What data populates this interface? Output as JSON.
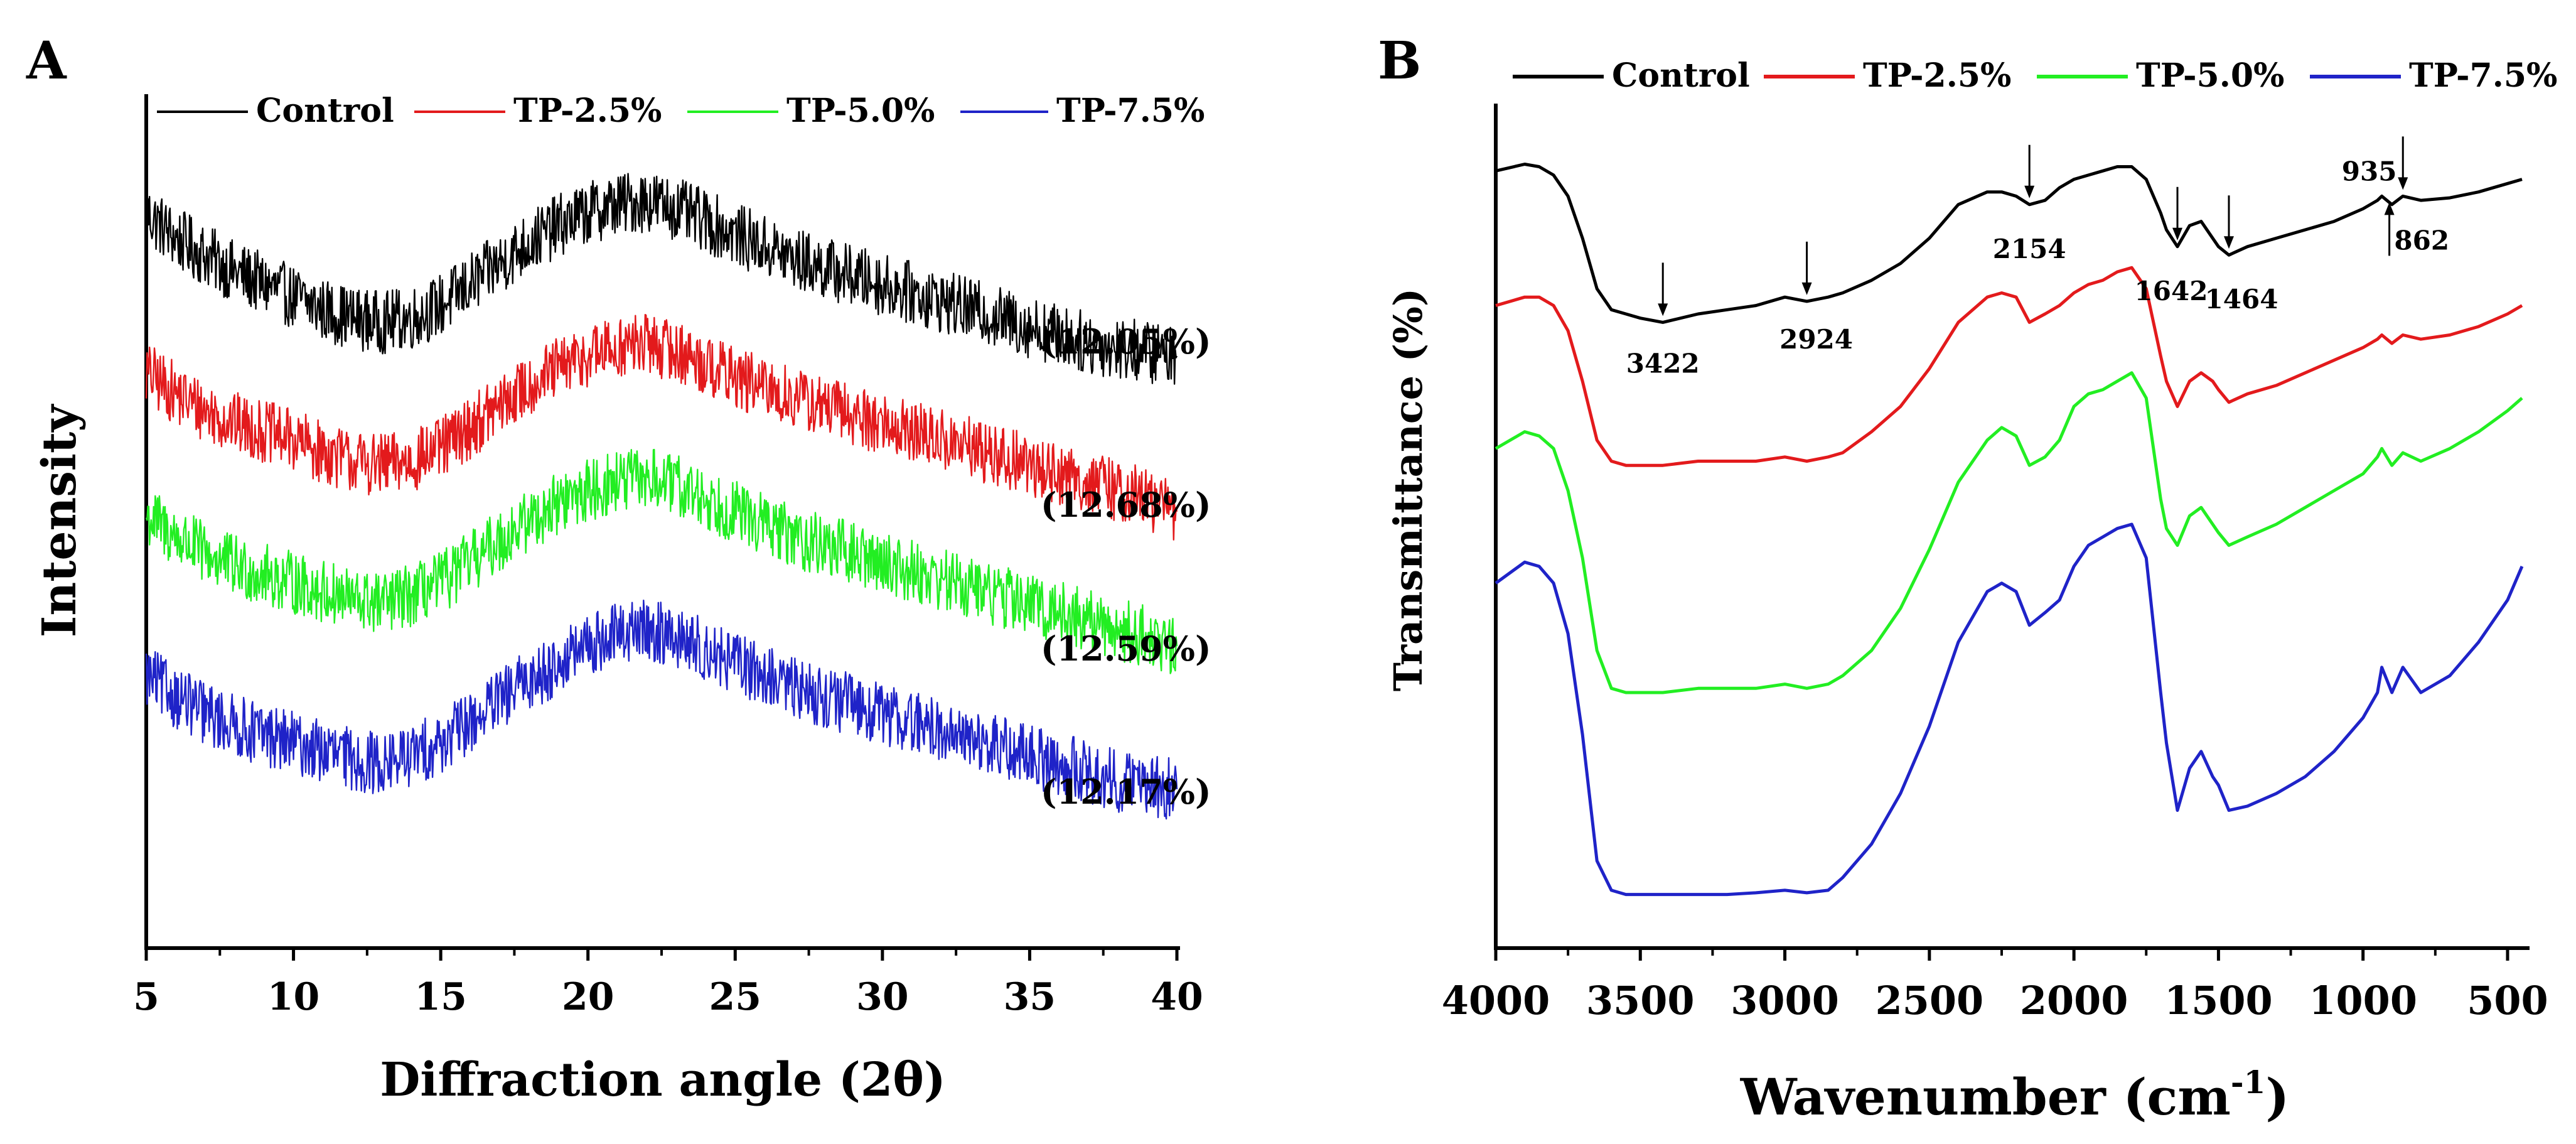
{
  "colors": {
    "control": "#000000",
    "tp25": "#e31a1c",
    "tp50": "#22ee22",
    "tp75": "#1f23c8",
    "axis": "#000000"
  },
  "legend": {
    "control": "Control",
    "tp25": "TP-2.5%",
    "tp50": "TP-5.0%",
    "tp75": "TP-7.5%"
  },
  "chart_data": [
    {
      "panel_label": "A",
      "type": "line",
      "title": "",
      "xlabel": "Diffraction angle (2θ)",
      "ylabel": "Intensity",
      "xlim": [
        5,
        40
      ],
      "ylim": [
        0,
        100
      ],
      "xticks": [
        5,
        10,
        15,
        20,
        25,
        30,
        35,
        40
      ],
      "xtick_labels": [
        "5",
        "10",
        "15",
        "20",
        "25",
        "30",
        "35",
        "40"
      ],
      "grid": false,
      "legend_position": "top",
      "x": [
        5,
        6,
        7,
        8,
        9,
        10,
        11,
        12,
        13,
        14,
        15,
        16,
        17,
        18,
        19,
        20,
        21,
        22,
        23,
        24,
        25,
        26,
        27,
        28,
        29,
        30,
        31,
        32,
        33,
        34,
        35,
        36,
        37,
        38,
        39,
        40
      ],
      "series": [
        {
          "name": "Control",
          "color_key": "control",
          "crystallinity": "(12.05%)",
          "values": [
            87,
            84,
            82,
            80,
            78.5,
            77,
            75.5,
            74.5,
            74,
            74.5,
            76,
            78.5,
            81,
            83.5,
            85.5,
            87,
            88,
            88.5,
            87.5,
            86,
            84.5,
            83,
            81.5,
            80.5,
            79.5,
            78.5,
            77.5,
            76.5,
            75.5,
            74.5,
            73.5,
            72.5,
            71.5,
            71,
            70.5,
            70
          ]
        },
        {
          "name": "TP-2.5%",
          "color_key": "tp25",
          "crystallinity": "(12.68%)",
          "values": [
            68,
            65.5,
            63.5,
            62,
            61,
            60,
            58.5,
            57.5,
            57,
            57.5,
            59,
            61.5,
            64,
            66.5,
            68.5,
            70,
            71,
            71.5,
            70.5,
            69,
            67.5,
            66,
            65,
            64,
            63,
            62,
            61,
            60,
            59,
            58,
            57,
            56,
            55,
            54,
            53,
            51.5
          ]
        },
        {
          "name": "TP-5.0%",
          "color_key": "tp50",
          "crystallinity": "(12.59%)",
          "values": [
            51,
            48.5,
            46.5,
            45,
            44,
            43,
            42,
            41,
            40.5,
            41.5,
            43,
            45.5,
            48,
            50.5,
            52.5,
            54,
            55,
            55.5,
            54.5,
            53,
            51.5,
            50,
            48.5,
            47.5,
            46.5,
            45.5,
            44.5,
            43.5,
            42.5,
            41.5,
            40.5,
            39.5,
            38.5,
            37.5,
            36.5,
            35.5
          ]
        },
        {
          "name": "TP-7.5%",
          "color_key": "tp75",
          "crystallinity": "(12.17%)",
          "values": [
            32,
            29.5,
            27.5,
            26,
            25,
            24,
            23,
            22,
            21.5,
            22.5,
            24,
            26.5,
            29,
            31.5,
            33.5,
            35.5,
            37,
            37.5,
            36.5,
            35,
            33.5,
            32,
            30.5,
            29.5,
            28.5,
            27.5,
            26.5,
            25.5,
            24.5,
            23.5,
            22.5,
            21.5,
            20.5,
            19.5,
            19,
            18.5
          ]
        }
      ]
    },
    {
      "panel_label": "B",
      "type": "line",
      "title": "",
      "xlabel": "Wavenumber (cm",
      "xlabel_sup": "-1",
      "xlabel_end": ")",
      "ylabel": "Transmittance (%)",
      "xlim": [
        4000,
        450
      ],
      "ylim": [
        0,
        100
      ],
      "xticks": [
        4000,
        3500,
        3000,
        2500,
        2000,
        1500,
        1000,
        500
      ],
      "xtick_labels": [
        "4000",
        "3500",
        "3000",
        "2500",
        "2000",
        "1500",
        "1000",
        "500"
      ],
      "grid": false,
      "legend_position": "top",
      "x": [
        4000,
        3900,
        3850,
        3800,
        3750,
        3700,
        3650,
        3600,
        3550,
        3500,
        3422,
        3300,
        3200,
        3100,
        3000,
        2924,
        2850,
        2800,
        2700,
        2600,
        2500,
        2400,
        2300,
        2250,
        2200,
        2154,
        2100,
        2050,
        2000,
        1950,
        1900,
        1850,
        1800,
        1750,
        1700,
        1680,
        1642,
        1600,
        1560,
        1520,
        1500,
        1464,
        1400,
        1300,
        1200,
        1100,
        1000,
        950,
        935,
        900,
        862,
        800,
        700,
        600,
        500,
        450
      ],
      "series": [
        {
          "name": "Control",
          "color_key": "control",
          "values": [
            92,
            92.8,
            92.5,
            91.5,
            89,
            84,
            78,
            75.5,
            75,
            74.5,
            74,
            75,
            75.5,
            76,
            77,
            76.5,
            77,
            77.5,
            79,
            81,
            84,
            88,
            89.5,
            89.5,
            89,
            88,
            88.5,
            90,
            91,
            91.5,
            92,
            92.5,
            92.5,
            91,
            87,
            85,
            83,
            85.5,
            86,
            84,
            83,
            82,
            83,
            84,
            85,
            86,
            87.5,
            88.5,
            89,
            88,
            89,
            88.5,
            88.8,
            89.5,
            90.5,
            91
          ]
        },
        {
          "name": "TP-2.5%",
          "color_key": "tp25",
          "values": [
            76,
            77,
            77,
            76,
            73,
            67,
            60,
            57.5,
            57,
            57,
            57,
            57.5,
            57.5,
            57.5,
            58,
            57.5,
            58,
            58.5,
            61,
            64,
            68.5,
            74,
            77,
            77.5,
            77,
            74,
            75,
            76,
            77.5,
            78.5,
            79,
            80,
            80.5,
            78,
            70,
            67,
            64,
            67,
            68,
            67,
            66,
            64.5,
            65.5,
            66.5,
            68,
            69.5,
            71,
            72,
            72.5,
            71.5,
            72.5,
            72,
            72.5,
            73.5,
            75,
            76
          ]
        },
        {
          "name": "TP-5.0%",
          "color_key": "tp50",
          "values": [
            59,
            61,
            60.5,
            59,
            54,
            46,
            35,
            30.5,
            30,
            30,
            30,
            30.5,
            30.5,
            30.5,
            31,
            30.5,
            31,
            32,
            35,
            40,
            47,
            55,
            60,
            61.5,
            60.5,
            57,
            58,
            60,
            64,
            65.5,
            66,
            67,
            68,
            65,
            53,
            49.5,
            47.5,
            51,
            52,
            50,
            49,
            47.5,
            48.5,
            50,
            52,
            54,
            56,
            58,
            59,
            57,
            58.5,
            57.5,
            59,
            61,
            63.5,
            65
          ]
        },
        {
          "name": "TP-7.5%",
          "color_key": "tp75",
          "values": [
            43,
            45.5,
            45,
            43,
            37,
            25,
            10,
            6.5,
            6,
            6,
            6,
            6,
            6,
            6.2,
            6.5,
            6.2,
            6.5,
            8,
            12,
            18,
            26,
            36,
            42,
            43,
            42,
            38,
            39.5,
            41,
            45,
            47.5,
            48.5,
            49.5,
            50,
            46,
            30,
            24,
            16,
            21,
            23,
            20,
            19,
            16,
            16.5,
            18,
            20,
            23,
            27,
            30,
            33,
            30,
            33,
            30,
            32,
            36,
            41,
            45
          ]
        }
      ],
      "annotations": [
        {
          "label": "3422",
          "x": 3422
        },
        {
          "label": "2924",
          "x": 2924
        },
        {
          "label": "2154",
          "x": 2154
        },
        {
          "label": "1642",
          "x": 1642
        },
        {
          "label": "1464",
          "x": 1464
        },
        {
          "label": "935",
          "x": 935
        },
        {
          "label": "862",
          "x": 862
        }
      ]
    }
  ]
}
